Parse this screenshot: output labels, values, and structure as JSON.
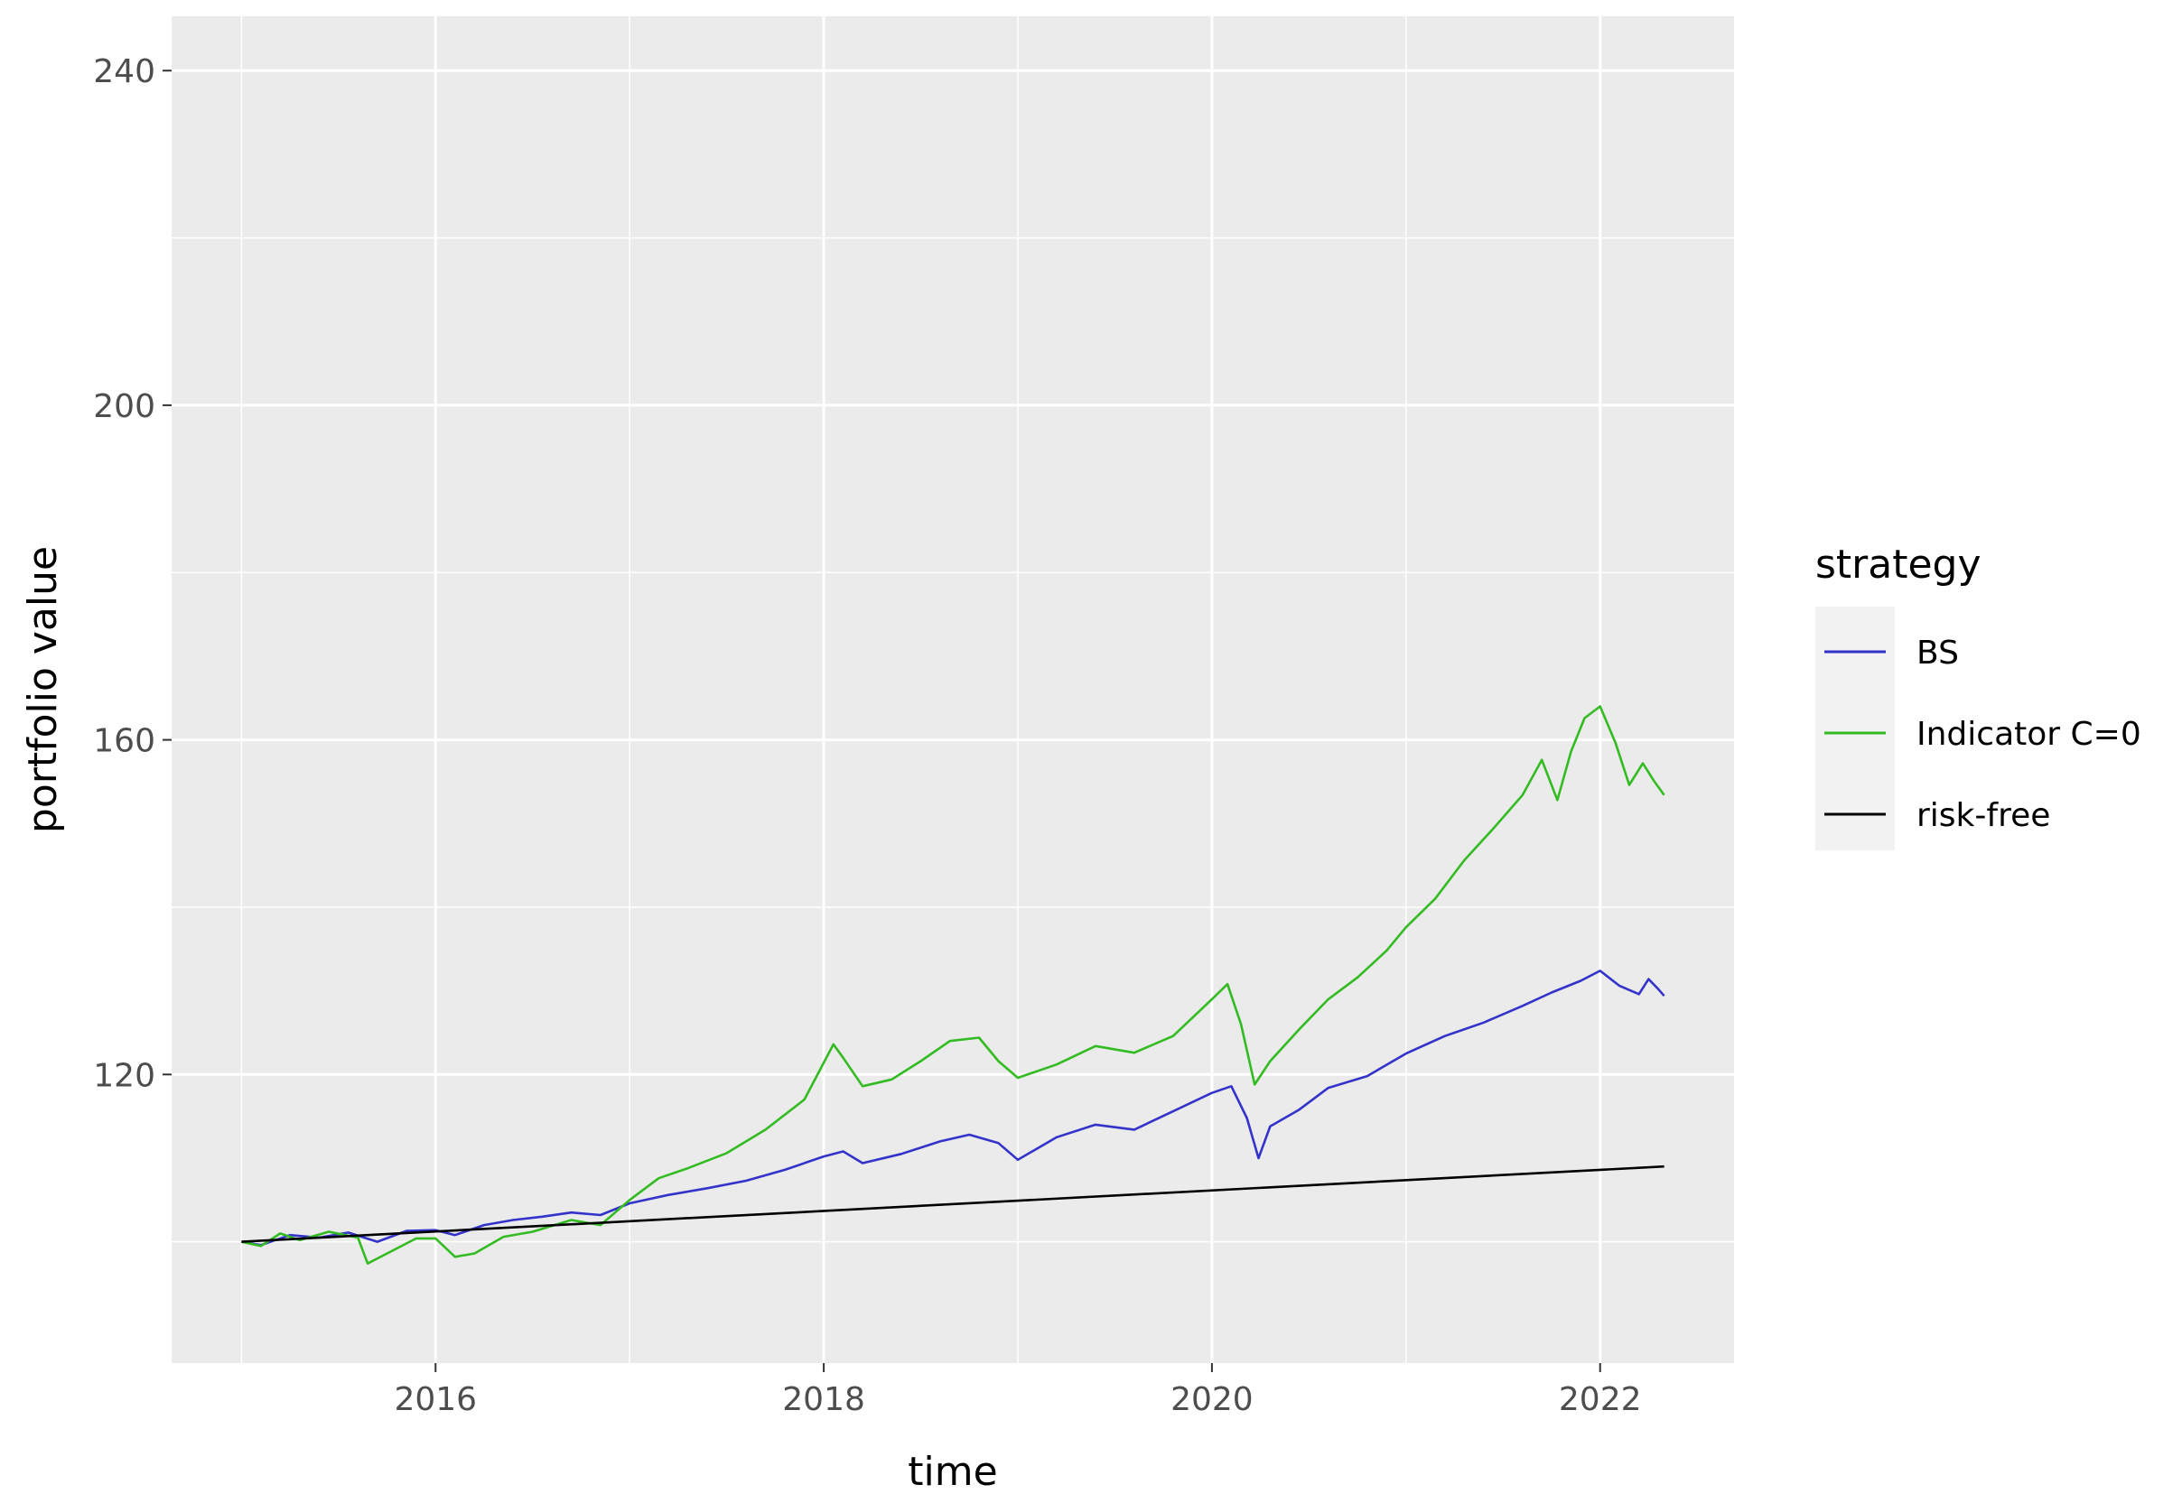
{
  "chart_data": {
    "type": "line",
    "title": "",
    "xlabel": "time",
    "ylabel": "portfolio value",
    "xlim": [
      2014.64,
      2022.69
    ],
    "ylim": [
      85.5,
      246.5
    ],
    "x_ticks": [
      {
        "value": 2016,
        "label": "2016"
      },
      {
        "value": 2018,
        "label": "2018"
      },
      {
        "value": 2020,
        "label": "2020"
      },
      {
        "value": 2022,
        "label": "2022"
      }
    ],
    "y_ticks": [
      {
        "value": 120,
        "label": "120"
      },
      {
        "value": 160,
        "label": "160"
      },
      {
        "value": 200,
        "label": "200"
      },
      {
        "value": 240,
        "label": "240"
      }
    ],
    "grid": true,
    "legend": {
      "title": "strategy",
      "position": "right",
      "entries": [
        "BS",
        "Indicator C=0",
        "risk-free"
      ]
    },
    "series": [
      {
        "name": "BS",
        "color": "#3333cc",
        "points": [
          [
            2015.0,
            100.0
          ],
          [
            2015.1,
            99.6
          ],
          [
            2015.25,
            100.8
          ],
          [
            2015.4,
            100.5
          ],
          [
            2015.55,
            101.1
          ],
          [
            2015.7,
            100.0
          ],
          [
            2015.85,
            101.3
          ],
          [
            2016.0,
            101.4
          ],
          [
            2016.1,
            100.8
          ],
          [
            2016.25,
            102.0
          ],
          [
            2016.4,
            102.6
          ],
          [
            2016.55,
            103.0
          ],
          [
            2016.7,
            103.5
          ],
          [
            2016.85,
            103.2
          ],
          [
            2017.0,
            104.6
          ],
          [
            2017.2,
            105.6
          ],
          [
            2017.4,
            106.4
          ],
          [
            2017.6,
            107.3
          ],
          [
            2017.8,
            108.6
          ],
          [
            2018.0,
            110.2
          ],
          [
            2018.1,
            110.8
          ],
          [
            2018.2,
            109.4
          ],
          [
            2018.4,
            110.5
          ],
          [
            2018.6,
            112.0
          ],
          [
            2018.75,
            112.8
          ],
          [
            2018.9,
            111.8
          ],
          [
            2019.0,
            109.8
          ],
          [
            2019.2,
            112.5
          ],
          [
            2019.4,
            114.0
          ],
          [
            2019.6,
            113.4
          ],
          [
            2019.8,
            115.6
          ],
          [
            2020.0,
            117.8
          ],
          [
            2020.1,
            118.6
          ],
          [
            2020.18,
            114.8
          ],
          [
            2020.24,
            110.0
          ],
          [
            2020.3,
            113.8
          ],
          [
            2020.45,
            115.8
          ],
          [
            2020.6,
            118.4
          ],
          [
            2020.8,
            119.8
          ],
          [
            2021.0,
            122.5
          ],
          [
            2021.2,
            124.6
          ],
          [
            2021.4,
            126.2
          ],
          [
            2021.6,
            128.2
          ],
          [
            2021.75,
            129.8
          ],
          [
            2021.9,
            131.2
          ],
          [
            2022.0,
            132.4
          ],
          [
            2022.1,
            130.6
          ],
          [
            2022.2,
            129.6
          ],
          [
            2022.25,
            131.4
          ],
          [
            2022.3,
            130.2
          ],
          [
            2022.33,
            129.4
          ]
        ]
      },
      {
        "name": "Indicator C=0",
        "color": "#33bb22",
        "points": [
          [
            2015.0,
            100.0
          ],
          [
            2015.1,
            99.5
          ],
          [
            2015.2,
            101.0
          ],
          [
            2015.3,
            100.2
          ],
          [
            2015.45,
            101.2
          ],
          [
            2015.6,
            100.5
          ],
          [
            2015.65,
            97.4
          ],
          [
            2015.75,
            98.6
          ],
          [
            2015.9,
            100.4
          ],
          [
            2016.0,
            100.4
          ],
          [
            2016.1,
            98.2
          ],
          [
            2016.2,
            98.6
          ],
          [
            2016.35,
            100.6
          ],
          [
            2016.5,
            101.2
          ],
          [
            2016.7,
            102.6
          ],
          [
            2016.85,
            102.0
          ],
          [
            2017.0,
            105.0
          ],
          [
            2017.15,
            107.6
          ],
          [
            2017.3,
            108.8
          ],
          [
            2017.5,
            110.6
          ],
          [
            2017.7,
            113.4
          ],
          [
            2017.9,
            117.0
          ],
          [
            2018.05,
            123.6
          ],
          [
            2018.1,
            122.0
          ],
          [
            2018.2,
            118.6
          ],
          [
            2018.35,
            119.4
          ],
          [
            2018.5,
            121.6
          ],
          [
            2018.65,
            124.0
          ],
          [
            2018.8,
            124.4
          ],
          [
            2018.9,
            121.6
          ],
          [
            2019.0,
            119.6
          ],
          [
            2019.2,
            121.2
          ],
          [
            2019.4,
            123.4
          ],
          [
            2019.6,
            122.6
          ],
          [
            2019.8,
            124.6
          ],
          [
            2020.0,
            129.0
          ],
          [
            2020.08,
            130.8
          ],
          [
            2020.15,
            126.0
          ],
          [
            2020.22,
            118.8
          ],
          [
            2020.3,
            121.6
          ],
          [
            2020.45,
            125.4
          ],
          [
            2020.6,
            129.0
          ],
          [
            2020.75,
            131.6
          ],
          [
            2020.9,
            134.8
          ],
          [
            2021.0,
            137.6
          ],
          [
            2021.15,
            141.0
          ],
          [
            2021.3,
            145.6
          ],
          [
            2021.45,
            149.4
          ],
          [
            2021.6,
            153.4
          ],
          [
            2021.7,
            157.6
          ],
          [
            2021.78,
            152.8
          ],
          [
            2021.85,
            158.6
          ],
          [
            2021.92,
            162.6
          ],
          [
            2022.0,
            164.0
          ],
          [
            2022.08,
            159.6
          ],
          [
            2022.15,
            154.6
          ],
          [
            2022.22,
            157.2
          ],
          [
            2022.28,
            155.0
          ],
          [
            2022.33,
            153.4
          ]
        ]
      },
      {
        "name": "risk-free",
        "color": "#000000",
        "points": [
          [
            2015.0,
            100.0
          ],
          [
            2022.33,
            109.0
          ]
        ]
      }
    ]
  }
}
